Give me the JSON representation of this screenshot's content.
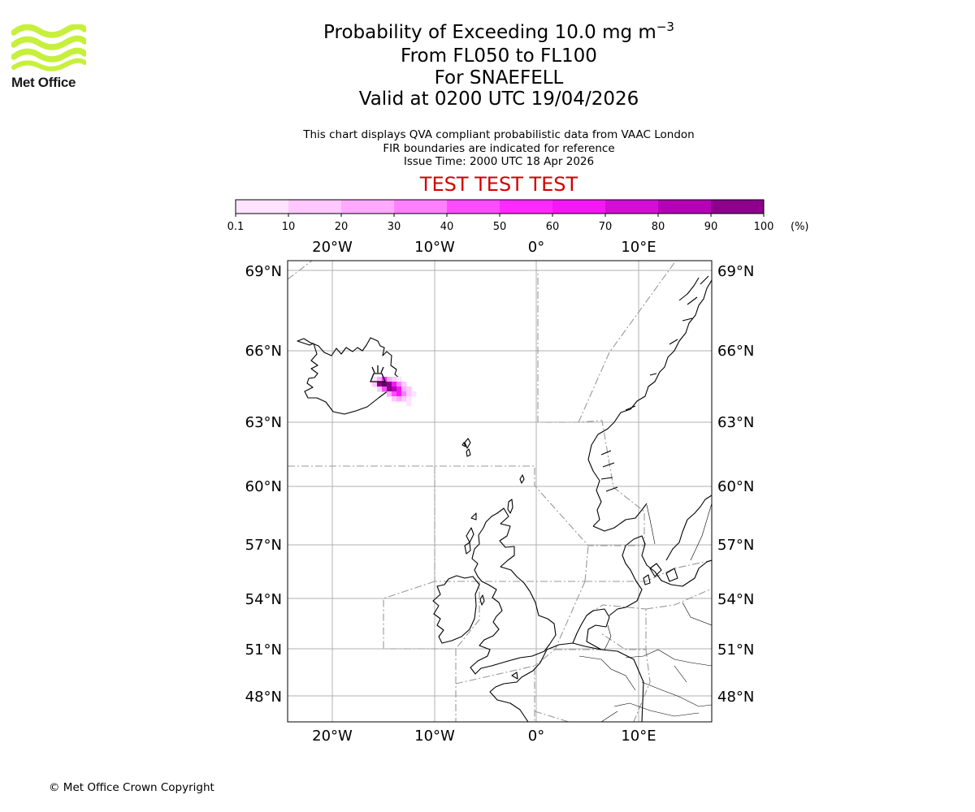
{
  "brand": {
    "name": "Met Office",
    "accent_color": "#c6f03c"
  },
  "chart": {
    "title_prefix": "Probability of Exceeding 10.0 mg m",
    "title_exponent": "−3",
    "level_range": "From FL050 to FL100",
    "volcano_line": "For SNAEFELL",
    "valid_time": "Valid at 0200 UTC 19/04/2026",
    "info_lines": [
      "This chart displays QVA compliant probabilistic data from VAAC London",
      "FIR boundaries are indicated for reference",
      "Issue Time: 2000 UTC 18 Apr 2026"
    ],
    "test_banner": "TEST TEST TEST"
  },
  "colorbar": {
    "unit_label": "(%)",
    "tick_labels": [
      "0.1",
      "10",
      "20",
      "30",
      "40",
      "50",
      "60",
      "70",
      "80",
      "90",
      "100"
    ],
    "colors": [
      "#ffe3ff",
      "#ffc8ff",
      "#ffaaff",
      "#ff80ff",
      "#ff4cff",
      "#ff2aff",
      "#f517f5",
      "#d40ed4",
      "#b500b5",
      "#8c008c",
      "#660066"
    ]
  },
  "map": {
    "lon_labels": [
      "20°W",
      "10°W",
      "0°",
      "10°E"
    ],
    "lat_labels": [
      "69°N",
      "66°N",
      "63°N",
      "60°N",
      "57°N",
      "54°N",
      "51°N",
      "48°N"
    ],
    "volcano_icon": "volcano-icon"
  },
  "footer": {
    "copyright": "© Met Office Crown Copyright"
  }
}
